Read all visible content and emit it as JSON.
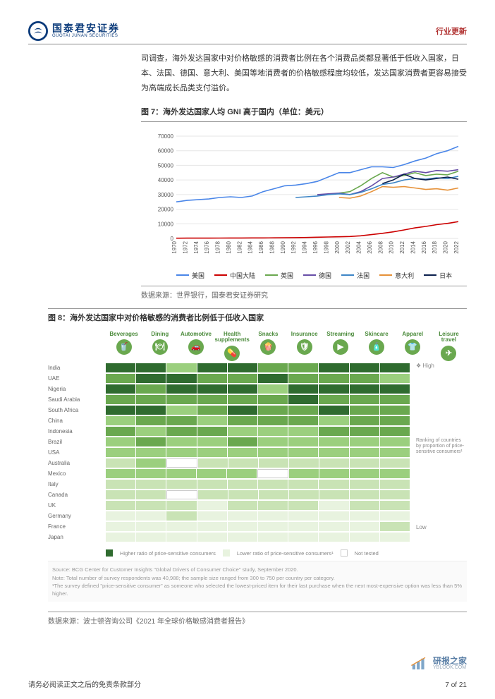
{
  "header": {
    "brand_cn": "国泰君安证券",
    "brand_en": "GUOTAI JUNAN SECURITIES",
    "category": "行业更新",
    "logo_color": "#0a3a7a",
    "rule_color": "#888888"
  },
  "paragraph": "司调查，海外发达国家中对价格敏感的消费者比例在各个消费品类都显著低于低收入国家，日本、法国、德国、意大利、美国等地消费者的价格敏感程度均较低，发达国家消费者更容易接受为高端成长品类支付溢价。",
  "fig7": {
    "title": "图 7：海外发达国家人均 GNI 高于国内（单位：美元）",
    "source": "数据来源：世界银行，国泰君安证券研究",
    "chart": {
      "ylim": [
        0,
        70000
      ],
      "ytick_step": 10000,
      "yticks": [
        0,
        10000,
        20000,
        30000,
        40000,
        50000,
        60000,
        70000
      ],
      "years": [
        1970,
        1972,
        1974,
        1976,
        1978,
        1980,
        1982,
        1984,
        1986,
        1988,
        1990,
        1992,
        1994,
        1996,
        1998,
        2000,
        2002,
        2004,
        2006,
        2008,
        2010,
        2012,
        2014,
        2016,
        2018,
        2020,
        2022
      ],
      "series": [
        {
          "name": "美国",
          "color": "#4a86e8",
          "values": [
            25000,
            26000,
            26500,
            27000,
            28000,
            28500,
            28000,
            29000,
            32000,
            34000,
            36000,
            36500,
            37500,
            39000,
            42000,
            45000,
            45000,
            47000,
            49000,
            49000,
            48500,
            50500,
            53000,
            55000,
            58000,
            60000,
            63000
          ]
        },
        {
          "name": "中国大陆",
          "color": "#cc0000",
          "values": [
            150,
            170,
            190,
            210,
            240,
            280,
            300,
            320,
            350,
            400,
            450,
            520,
            650,
            800,
            950,
            1100,
            1300,
            1800,
            2600,
            3500,
            4500,
            5800,
            7200,
            8200,
            9400,
            10300,
            11500
          ]
        },
        {
          "name": "英国",
          "color": "#6aa84f",
          "values": [
            null,
            null,
            null,
            null,
            null,
            null,
            null,
            null,
            null,
            null,
            null,
            null,
            null,
            null,
            null,
            31000,
            32000,
            36000,
            41000,
            45000,
            42000,
            43000,
            45000,
            43000,
            44000,
            43500,
            46000
          ]
        },
        {
          "name": "德国",
          "color": "#674ea7",
          "values": [
            null,
            null,
            null,
            null,
            null,
            null,
            null,
            null,
            null,
            null,
            null,
            null,
            null,
            30000,
            30500,
            31000,
            30000,
            32000,
            36000,
            41000,
            42000,
            44000,
            46000,
            45000,
            46500,
            46000,
            47000
          ]
        },
        {
          "name": "法国",
          "color": "#3d85c6",
          "values": [
            null,
            null,
            null,
            null,
            null,
            null,
            null,
            null,
            null,
            null,
            null,
            28000,
            28500,
            29000,
            30000,
            30500,
            30000,
            31500,
            34000,
            37000,
            38000,
            40000,
            41000,
            40500,
            41500,
            41000,
            42500
          ]
        },
        {
          "name": "意大利",
          "color": "#e69138",
          "values": [
            null,
            null,
            null,
            null,
            null,
            null,
            null,
            null,
            null,
            null,
            null,
            null,
            null,
            null,
            null,
            28000,
            27500,
            29000,
            32000,
            35500,
            35000,
            35500,
            34500,
            33500,
            34000,
            33000,
            34500
          ]
        },
        {
          "name": "日本",
          "color": "#0b1f4d",
          "values": [
            null,
            null,
            null,
            null,
            null,
            null,
            null,
            null,
            null,
            null,
            null,
            null,
            null,
            null,
            null,
            null,
            null,
            null,
            null,
            37500,
            40000,
            44000,
            41000,
            40000,
            41000,
            42000,
            40500
          ]
        }
      ],
      "grid_color": "#e6e6e6",
      "axis_color": "#555555",
      "tick_fontsize": 8,
      "background_color": "#ffffff"
    }
  },
  "fig8": {
    "title": "图 8：海外发达国家中对价格敏感的消费者比例低于低收入国家",
    "categories": [
      "Beverages",
      "Dining",
      "Automotive",
      "Health supplements",
      "Snacks",
      "Insurance",
      "Streaming",
      "Skincare",
      "Apparel",
      "Leisure travel"
    ],
    "category_icons": [
      "🥤",
      "🍽",
      "🚗",
      "💊",
      "🍿",
      "🛡",
      "▶",
      "🧴",
      "👕",
      "✈"
    ],
    "countries": [
      "India",
      "UAE",
      "Nigeria",
      "Saudi Arabia",
      "South Africa",
      "China",
      "Indonesia",
      "Brazil",
      "USA",
      "Australia",
      "Mexico",
      "Italy",
      "Canada",
      "UK",
      "Germany",
      "France",
      "Japan"
    ],
    "rank_values": [
      [
        5,
        5,
        3,
        5,
        5,
        4,
        4,
        5,
        5,
        5
      ],
      [
        4,
        5,
        5,
        4,
        4,
        5,
        4,
        4,
        4,
        3
      ],
      [
        5,
        4,
        5,
        5,
        5,
        3,
        5,
        5,
        5,
        5
      ],
      [
        4,
        4,
        4,
        4,
        4,
        4,
        5,
        4,
        4,
        4
      ],
      [
        5,
        5,
        3,
        4,
        5,
        4,
        4,
        5,
        4,
        4
      ],
      [
        3,
        4,
        4,
        3,
        4,
        4,
        4,
        3,
        4,
        4
      ],
      [
        4,
        3,
        4,
        4,
        3,
        3,
        3,
        4,
        4,
        4
      ],
      [
        3,
        4,
        3,
        3,
        4,
        3,
        3,
        3,
        3,
        3
      ],
      [
        3,
        3,
        3,
        3,
        3,
        3,
        3,
        3,
        3,
        3
      ],
      [
        2,
        3,
        0,
        2,
        2,
        2,
        2,
        2,
        2,
        2
      ],
      [
        3,
        3,
        3,
        3,
        3,
        0,
        3,
        3,
        3,
        3
      ],
      [
        2,
        2,
        2,
        2,
        2,
        2,
        2,
        2,
        2,
        2
      ],
      [
        2,
        2,
        0,
        2,
        2,
        2,
        2,
        2,
        2,
        2
      ],
      [
        2,
        2,
        2,
        1,
        2,
        2,
        2,
        1,
        2,
        2
      ],
      [
        1,
        1,
        2,
        1,
        1,
        1,
        1,
        1,
        1,
        1
      ],
      [
        1,
        1,
        1,
        1,
        1,
        1,
        1,
        1,
        1,
        2
      ],
      [
        1,
        1,
        1,
        1,
        1,
        1,
        1,
        1,
        1,
        1
      ]
    ],
    "rank_colors": {
      "0": "#ffffff",
      "1": "#e8f3df",
      "2": "#c9e3b5",
      "3": "#9bcf7e",
      "4": "#6aa84f",
      "5": "#2f6b2f"
    },
    "side": {
      "high": "❖ High",
      "low": "Low",
      "caption": "Ranking of countries by proportion of price-sensitive consumers¹"
    },
    "legend": {
      "high_label": "Higher ratio of price-sensitive consumers",
      "low_label": "Lower ratio of price-sensitive consumers¹",
      "not_tested": "Not tested",
      "high_color": "#2f6b2f",
      "low_color": "#e8f3df",
      "nt_color": "#ffffff",
      "nt_border": "#cccccc"
    },
    "notes": {
      "source": "Source: BCG Center for Customer Insights \"Global Drivers of Consumer Choice\" study, September 2020.",
      "note": "Note: Total number of survey respondents was 40,988; the sample size ranged from 300 to 750 per country per category.",
      "foot": "¹The survey defined \"price-sensitive consumer\" as someone who selected the lowest-priced item for their last purchase when the next most-expensive option was less than 5% higher."
    },
    "outer_source": "数据来源：波士顿咨询公司《2021 年全球价格敏感消费者报告》",
    "header_color": "#4a8a3a"
  },
  "footer": {
    "disclaimer": "请务必阅读正文之后的免责条款部分",
    "page": "7 of 21"
  },
  "watermark": {
    "cn": "研报之家",
    "en": "YBLOOK.COM"
  }
}
